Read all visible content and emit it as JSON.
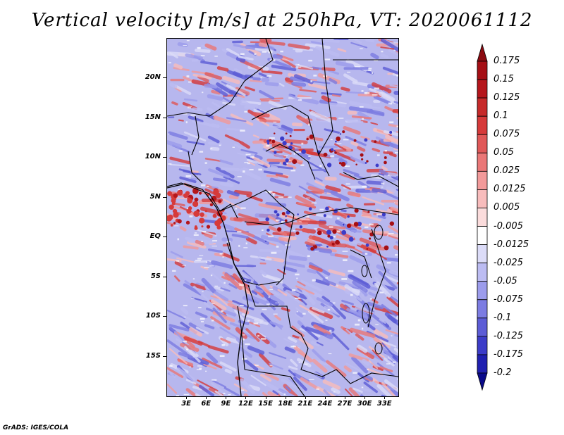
{
  "title": "Vertical velocity [m/s] at 250hPa, VT: 2020061112",
  "footer": "GrADS: IGES/COLA",
  "map": {
    "field": "vertical velocity",
    "units": "m/s",
    "level": "250hPa",
    "valid_time": "2020061112",
    "lon_range": [
      0,
      35
    ],
    "lat_range": [
      -20,
      25
    ],
    "lat_ticks": [
      {
        "value": 20,
        "label": "20N"
      },
      {
        "value": 15,
        "label": "15N"
      },
      {
        "value": 10,
        "label": "10N"
      },
      {
        "value": 5,
        "label": "5N"
      },
      {
        "value": 0,
        "label": "EQ"
      },
      {
        "value": -5,
        "label": "5S"
      },
      {
        "value": -10,
        "label": "10S"
      },
      {
        "value": -15,
        "label": "15S"
      }
    ],
    "lon_ticks": [
      {
        "value": 3,
        "label": "3E"
      },
      {
        "value": 6,
        "label": "6E"
      },
      {
        "value": 9,
        "label": "9E"
      },
      {
        "value": 12,
        "label": "12E"
      },
      {
        "value": 15,
        "label": "15E"
      },
      {
        "value": 18,
        "label": "18E"
      },
      {
        "value": 21,
        "label": "21E"
      },
      {
        "value": 24,
        "label": "24E"
      },
      {
        "value": 27,
        "label": "27E"
      },
      {
        "value": 30,
        "label": "30E"
      },
      {
        "value": 33,
        "label": "33E"
      }
    ]
  },
  "colorbar": {
    "levels": [
      {
        "label": "0.175",
        "color": "#a50f15"
      },
      {
        "label": "0.15",
        "color": "#b5161c"
      },
      {
        "label": "0.125",
        "color": "#c62a2a"
      },
      {
        "label": "0.1",
        "color": "#d63a3a"
      },
      {
        "label": "0.075",
        "color": "#e05858"
      },
      {
        "label": "0.05",
        "color": "#ea7777"
      },
      {
        "label": "0.025",
        "color": "#f29a9a"
      },
      {
        "label": "0.0125",
        "color": "#f8bcbc"
      },
      {
        "label": "0.005",
        "color": "#fbdcdc"
      },
      {
        "label": "-0.005",
        "color": "#ffffff"
      },
      {
        "label": "-0.0125",
        "color": "#dcdcf8"
      },
      {
        "label": "-0.025",
        "color": "#bcbcf2"
      },
      {
        "label": "-0.05",
        "color": "#9c9cec"
      },
      {
        "label": "-0.075",
        "color": "#7c7ce2"
      },
      {
        "label": "-0.1",
        "color": "#5c5cd6"
      },
      {
        "label": "-0.125",
        "color": "#3c3cc8"
      },
      {
        "label": "-0.175",
        "color": "#2020b0"
      },
      {
        "label": "-0.2",
        "color": "#10109a"
      }
    ],
    "top_color": "#8b0a10",
    "bottom_color": "#0a0a8a"
  }
}
